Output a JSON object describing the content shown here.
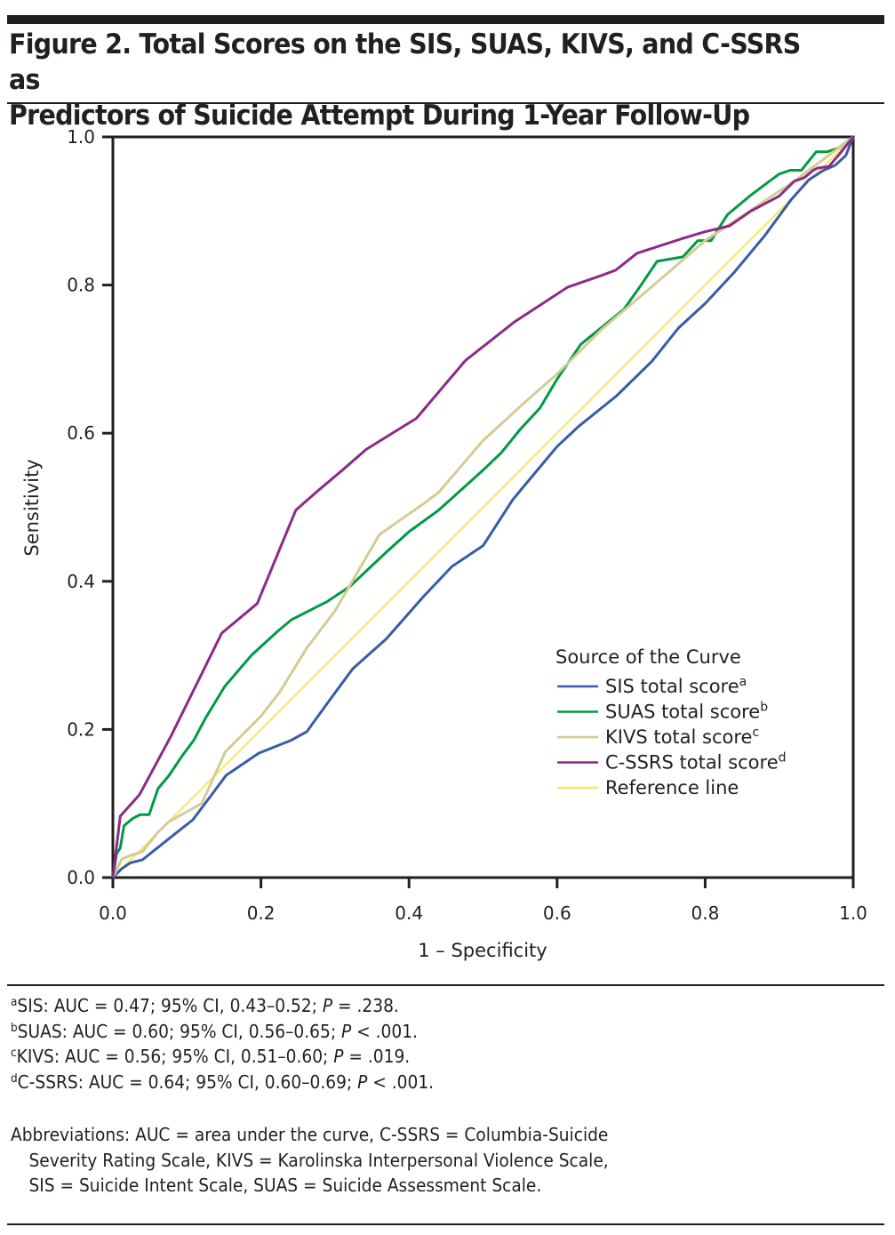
{
  "figure": {
    "title_line1": "Figure 2. Total Scores on the SIS, SUAS, KIVS, and C-SSRS as",
    "title_line2": "Predictors of Suicide Attempt During 1-Year Follow-Up"
  },
  "chart_data": {
    "type": "line",
    "title": "Total Scores on the SIS, SUAS, KIVS, and C-SSRS as Predictors of Suicide Attempt During 1-Year Follow-Up",
    "xlabel": "1 – Specificity",
    "ylabel": "Sensitivity",
    "xlim": [
      0,
      1
    ],
    "ylim": [
      0,
      1
    ],
    "xticks": [
      "0.0",
      "0.2",
      "0.4",
      "0.6",
      "0.8",
      "1.0"
    ],
    "yticks": [
      "0.0",
      "0.2",
      "0.4",
      "0.6",
      "0.8",
      "1.0"
    ],
    "grid": false,
    "legend": {
      "title": "Source of the Curve",
      "position": "lower-right"
    },
    "series": [
      {
        "name": "SIS total score",
        "sup": "a",
        "color": "#3a5ba8",
        "x": [
          0,
          0.012,
          0.024,
          0.04,
          0.06,
          0.08,
          0.108,
          0.132,
          0.153,
          0.197,
          0.24,
          0.262,
          0.293,
          0.324,
          0.369,
          0.42,
          0.458,
          0.5,
          0.54,
          0.554,
          0.6,
          0.63,
          0.68,
          0.728,
          0.764,
          0.8,
          0.84,
          0.88,
          0.916,
          0.94,
          0.96,
          0.976,
          0.99,
          1
        ],
        "y": [
          0,
          0.012,
          0.02,
          0.024,
          0.04,
          0.056,
          0.078,
          0.11,
          0.138,
          0.168,
          0.185,
          0.197,
          0.24,
          0.282,
          0.322,
          0.38,
          0.42,
          0.448,
          0.51,
          0.527,
          0.582,
          0.61,
          0.65,
          0.697,
          0.742,
          0.775,
          0.818,
          0.866,
          0.915,
          0.942,
          0.955,
          0.962,
          0.975,
          1
        ]
      },
      {
        "name": "SUAS total score",
        "sup": "b",
        "color": "#009a44",
        "x": [
          0,
          0.005,
          0.01,
          0.015,
          0.027,
          0.037,
          0.049,
          0.061,
          0.076,
          0.094,
          0.109,
          0.125,
          0.151,
          0.187,
          0.223,
          0.241,
          0.29,
          0.32,
          0.37,
          0.4,
          0.44,
          0.5,
          0.525,
          0.55,
          0.577,
          0.6,
          0.632,
          0.69,
          0.71,
          0.735,
          0.77,
          0.79,
          0.808,
          0.83,
          0.86,
          0.88,
          0.9,
          0.915,
          0.93,
          0.95,
          0.965,
          0.98,
          1
        ],
        "y": [
          0,
          0.032,
          0.04,
          0.07,
          0.08,
          0.085,
          0.085,
          0.12,
          0.138,
          0.165,
          0.185,
          0.215,
          0.258,
          0.3,
          0.333,
          0.348,
          0.373,
          0.393,
          0.44,
          0.467,
          0.496,
          0.55,
          0.574,
          0.605,
          0.634,
          0.673,
          0.72,
          0.767,
          0.795,
          0.832,
          0.838,
          0.86,
          0.86,
          0.895,
          0.92,
          0.935,
          0.95,
          0.955,
          0.955,
          0.98,
          0.98,
          0.985,
          1
        ]
      },
      {
        "name": "KIVS total score",
        "sup": "c",
        "color": "#d4cc94",
        "x": [
          0,
          0.012,
          0.024,
          0.04,
          0.06,
          0.075,
          0.12,
          0.152,
          0.2,
          0.225,
          0.262,
          0.3,
          0.36,
          0.42,
          0.44,
          0.5,
          0.56,
          0.6,
          0.66,
          0.74,
          0.8,
          0.86,
          0.92,
          0.96,
          1
        ],
        "y": [
          0,
          0.025,
          0.03,
          0.035,
          0.06,
          0.075,
          0.1,
          0.17,
          0.218,
          0.25,
          0.31,
          0.36,
          0.463,
          0.505,
          0.52,
          0.59,
          0.645,
          0.68,
          0.74,
          0.808,
          0.86,
          0.9,
          0.94,
          0.97,
          1
        ]
      },
      {
        "name": "C-SSRS total score",
        "sup": "d",
        "color": "#8c2a88",
        "x": [
          0,
          0.01,
          0.036,
          0.079,
          0.147,
          0.195,
          0.247,
          0.279,
          0.31,
          0.342,
          0.41,
          0.476,
          0.542,
          0.614,
          0.66,
          0.679,
          0.708,
          0.77,
          0.8,
          0.833,
          0.862,
          0.9,
          0.92,
          0.934,
          0.946,
          0.952,
          0.967,
          0.98,
          1
        ],
        "y": [
          0,
          0.083,
          0.112,
          0.192,
          0.33,
          0.37,
          0.496,
          0.524,
          0.55,
          0.578,
          0.62,
          0.698,
          0.75,
          0.797,
          0.813,
          0.82,
          0.843,
          0.863,
          0.872,
          0.88,
          0.9,
          0.92,
          0.94,
          0.945,
          0.955,
          0.958,
          0.96,
          0.975,
          1
        ]
      },
      {
        "name": "Reference line",
        "sup": "",
        "color": "#f2e86a",
        "x": [
          0,
          1
        ],
        "y": [
          0,
          1
        ]
      }
    ]
  },
  "footnotes": [
    {
      "sup": "a",
      "label": "SIS: AUC = 0.47; 95% CI, 0.43–0.52; ",
      "p_label": "P",
      "p_value": " = .238."
    },
    {
      "sup": "b",
      "label": "SUAS: AUC = 0.60; 95% CI, 0.56–0.65; ",
      "p_label": "P",
      "p_value": " < .001."
    },
    {
      "sup": "c",
      "label": "KIVS: AUC = 0.56; 95% CI, 0.51–0.60; ",
      "p_label": "P",
      "p_value": " = .019."
    },
    {
      "sup": "d",
      "label": "C-SSRS: AUC = 0.64; 95% CI, 0.60–0.69; ",
      "p_label": "P",
      "p_value": " < .001."
    }
  ],
  "abbreviations": {
    "line1": "Abbreviations: AUC = area under the curve, C-SSRS = Columbia-Suicide",
    "line2": "Severity Rating Scale, KIVS = Karolinska Interpersonal Violence Scale,",
    "line3": "SIS = Suicide Intent Scale, SUAS = Suicide Assessment Scale."
  }
}
